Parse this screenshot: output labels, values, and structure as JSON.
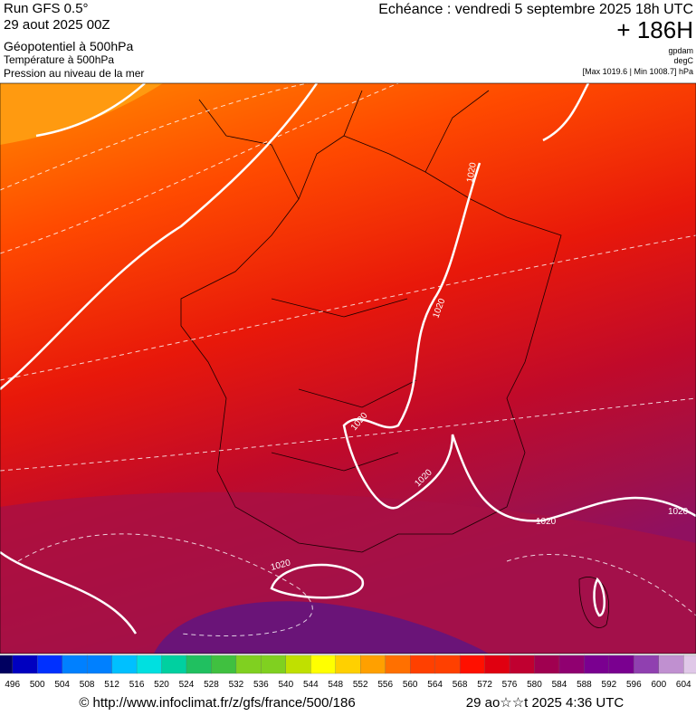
{
  "header": {
    "run": "Run GFS 0.5°",
    "run_date": "29 aout 2025 00Z",
    "field1": "Géopotentiel à 500hPa",
    "field2": "Température à 500hPa",
    "field3": "Pression au niveau de la mer",
    "valid": "Echéance : vendredi 5 septembre 2025 18h UTC",
    "lead": "+ 186H",
    "unit1": "gpdam",
    "unit2": "degC",
    "range": "[Max 1019.6 | Min 1008.7] hPa"
  },
  "isobar_labels": [
    "1020",
    "1020",
    "1020",
    "1020",
    "1020",
    "1020",
    "1020"
  ],
  "colorbar_labels": [
    "496",
    "500",
    "504",
    "508",
    "512",
    "516",
    "520",
    "524",
    "528",
    "532",
    "536",
    "540",
    "544",
    "548",
    "552",
    "556",
    "560",
    "564",
    "568",
    "572",
    "576",
    "580",
    "584",
    "588",
    "592",
    "596",
    "600",
    "604"
  ],
  "footer": {
    "source": "© http://www.infoclimat.fr/z/gfs/france/500/186",
    "generated": "29 ao☆☆t 2025  4:36 UTC"
  }
}
